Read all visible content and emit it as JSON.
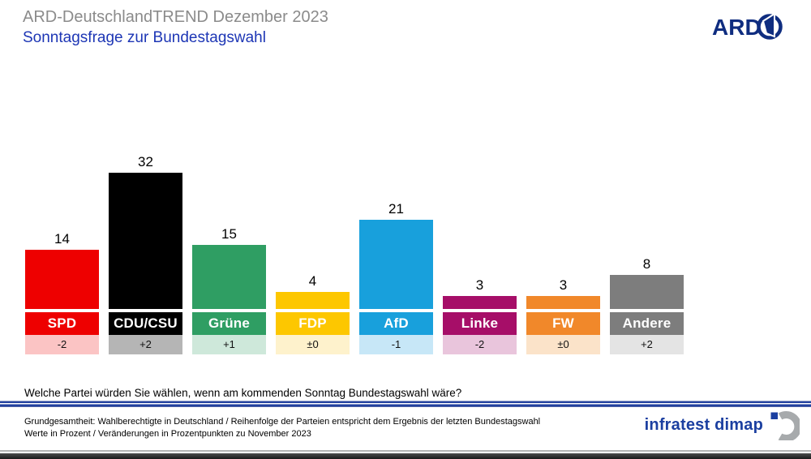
{
  "header": {
    "title": "ARD-DeutschlandTREND Dezember 2023",
    "subtitle": "Sonntagsfrage zur Bundestagswahl",
    "ard_logo_text": "ARD"
  },
  "chart_data": {
    "type": "bar",
    "title": "Sonntagsfrage zur Bundestagswahl",
    "categories": [
      "SPD",
      "CDU/CSU",
      "Grüne",
      "FDP",
      "AfD",
      "Linke",
      "FW",
      "Andere"
    ],
    "values": [
      14,
      32,
      15,
      4,
      21,
      3,
      3,
      8
    ],
    "changes": [
      "-2",
      "+2",
      "+1",
      "±0",
      "-1",
      "-2",
      "±0",
      "+2"
    ],
    "bar_colors": [
      "#ee0000",
      "#000000",
      "#2f9e63",
      "#fdc700",
      "#18a0dc",
      "#a60e68",
      "#f1882a",
      "#7d7d7d"
    ],
    "tint_colors": [
      "#fbc4c4",
      "#b5b5b5",
      "#cee8da",
      "#fef2cc",
      "#c7e7f7",
      "#e9c5dc",
      "#fbe3c9",
      "#e4e4e4"
    ],
    "unit": "percent",
    "ylim": [
      0,
      35
    ],
    "grid": false,
    "value_labels": "above bars",
    "change_reference": "Prozentpunkte zu November 2023"
  },
  "question": "Welche Partei würden Sie wählen, wenn am kommenden Sonntag Bundestagswahl wäre?",
  "footer": {
    "line1": "Grundgesamtheit: Wahlberechtigte in Deutschland / Reihenfolge der Parteien entspricht dem Ergebnis der letzten Bundestagswahl",
    "line2": "Werte in Prozent / Veränderungen in Prozentpunkten zu November 2023",
    "brand": "infratest dimap"
  },
  "colors": {
    "title_gray": "#8b8b8b",
    "subtitle_blue": "#1d36b5",
    "ard_blue": "#0f2d80",
    "brand_blue": "#1b3fa0",
    "rule_blue": "#21409f"
  }
}
